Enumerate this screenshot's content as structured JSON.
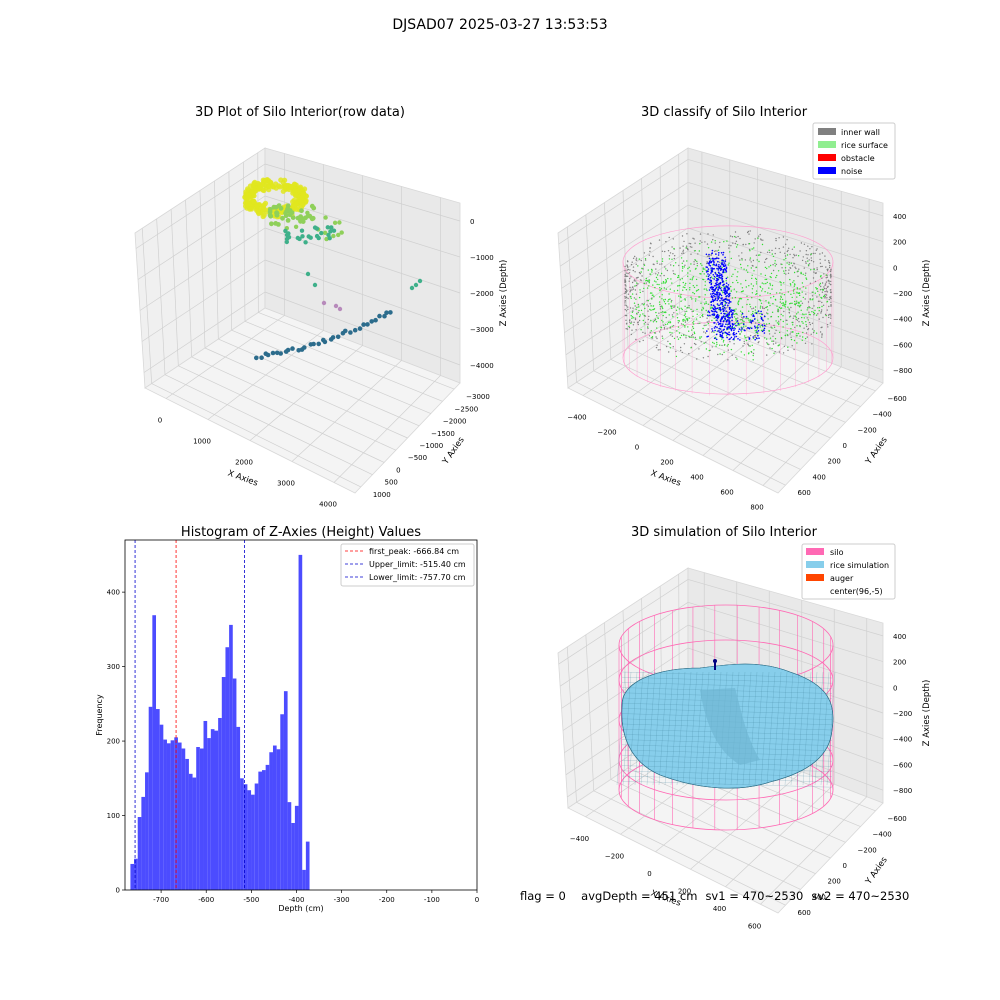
{
  "figure": {
    "suptitle": "DJSAD07 2025-03-27 13:53:53",
    "status": {
      "flag": "flag = 0",
      "avg_depth": "avgDepth = 451 cm",
      "sv1": "sv1 = 470~2530",
      "sv2": "sv2 = 470~2530"
    }
  },
  "chart_data": [
    {
      "type": "scatter",
      "title": "3D Plot of Silo Interior(row data)",
      "xlabel": "X Axies",
      "ylabel": "Y Axies",
      "zlabel": "Z Axies (Depth)",
      "x_ticks": [
        "0",
        "1000",
        "2000",
        "3000",
        "4000"
      ],
      "y_ticks": [
        "1000",
        "500",
        "0",
        "−500",
        "−1000",
        "−1500",
        "−2000",
        "−2500",
        "−3000"
      ],
      "z_ticks": [
        "0",
        "−1000",
        "−2000",
        "−3000",
        "−4000"
      ],
      "colormap": "viridis",
      "colors": {
        "top": "#e0e61f",
        "upper": "#8fd05a",
        "mid": "#3eb08a",
        "low": "#2c6c8c",
        "outlier": "#b78abb"
      }
    },
    {
      "type": "scatter",
      "title": "3D classify of Silo Interior",
      "xlabel": "X Axies",
      "ylabel": "Y Axies",
      "zlabel": "Z Axies (Depth)",
      "x_ticks": [
        "−400",
        "−200",
        "0",
        "200",
        "400",
        "600",
        "800"
      ],
      "y_ticks": [
        "600",
        "400",
        "200",
        "0",
        "−200",
        "−400",
        "−600"
      ],
      "z_ticks": [
        "400",
        "200",
        "0",
        "−200",
        "−400",
        "−600",
        "−800"
      ],
      "legend": {
        "position": "upper-right",
        "items": [
          {
            "label": "inner wall",
            "color": "#808080"
          },
          {
            "label": "rice surface",
            "color": "#90ee90"
          },
          {
            "label": "obstacle",
            "color": "#ff0000"
          },
          {
            "label": "noise",
            "color": "#0000ff"
          }
        ]
      }
    },
    {
      "type": "bar",
      "title": "Histogram of Z-Axies (Height) Values",
      "xlabel": "Depth (cm)",
      "ylabel": "Frequency",
      "xlim": [
        -780,
        0
      ],
      "ylim": [
        0,
        470
      ],
      "x_ticks": [
        -700,
        -600,
        -500,
        -400,
        -300,
        -200,
        -100,
        0
      ],
      "y_ticks": [
        0,
        100,
        200,
        300,
        400
      ],
      "bin_start": -768,
      "bin_width": 8.1,
      "values": [
        35,
        42,
        98,
        125,
        158,
        246,
        369,
        243,
        222,
        202,
        197,
        201,
        205,
        198,
        190,
        176,
        156,
        151,
        192,
        190,
        227,
        204,
        216,
        214,
        231,
        286,
        326,
        356,
        284,
        219,
        150,
        142,
        134,
        128,
        143,
        159,
        161,
        168,
        185,
        194,
        189,
        236,
        267,
        118,
        90,
        113,
        450,
        27,
        65
      ],
      "bar_color": "#4c4cff",
      "lines": [
        {
          "x": -666.84,
          "label": "first_peak: -666.84 cm",
          "color": "#ff0000"
        },
        {
          "x": -515.4,
          "label": "Upper_limit: -515.40 cm",
          "color": "#0000cc"
        },
        {
          "x": -757.7,
          "label": "Lower_limit: -757.70 cm",
          "color": "#0000cc"
        }
      ],
      "legend": {
        "position": "upper-right"
      }
    },
    {
      "type": "scatter",
      "title": "3D simulation of Silo Interior",
      "xlabel": "X Axies",
      "ylabel": "Y Axies",
      "zlabel": "Z Axies (Depth)",
      "x_ticks": [
        "−400",
        "−200",
        "0",
        "200",
        "400",
        "600"
      ],
      "y_ticks": [
        "600",
        "400",
        "200",
        "0",
        "−200",
        "−400",
        "−600"
      ],
      "z_ticks": [
        "400",
        "200",
        "0",
        "−200",
        "−400",
        "−600",
        "−800"
      ],
      "legend": {
        "position": "upper-right",
        "items": [
          {
            "label": "silo",
            "color": "#ff69b4"
          },
          {
            "label": "rice simulation",
            "color": "#87ceeb"
          },
          {
            "label": "auger",
            "color": "#ff4500"
          },
          {
            "label": "center(96,-5)",
            "color": ""
          }
        ]
      }
    }
  ]
}
